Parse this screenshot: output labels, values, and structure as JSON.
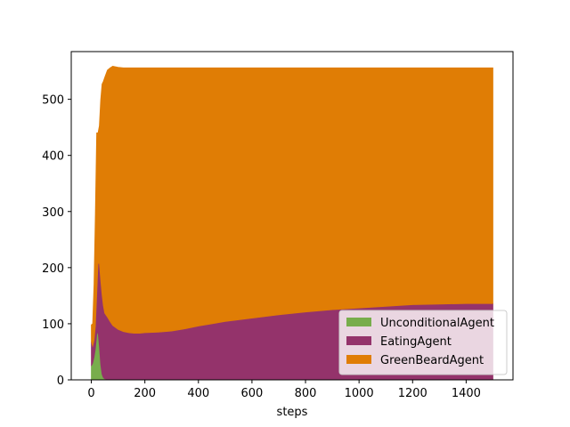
{
  "chart_data": {
    "type": "area",
    "stacked": true,
    "title": "",
    "xlabel": "steps",
    "ylabel": "",
    "xlim": [
      -75,
      1575
    ],
    "ylim": [
      0,
      585
    ],
    "xticks": [
      0,
      200,
      400,
      600,
      800,
      1000,
      1200,
      1400
    ],
    "yticks": [
      0,
      100,
      200,
      300,
      400,
      500
    ],
    "grid": false,
    "legend_position": "bottom-right",
    "x": [
      0,
      5,
      10,
      15,
      20,
      25,
      30,
      35,
      40,
      45,
      50,
      60,
      70,
      80,
      100,
      120,
      140,
      160,
      180,
      200,
      250,
      300,
      350,
      400,
      450,
      500,
      600,
      700,
      800,
      900,
      1000,
      1100,
      1200,
      1300,
      1400,
      1500
    ],
    "series": [
      {
        "name": "UnconditionalAgent",
        "color": "#78ad4c",
        "values": [
          25,
          30,
          40,
          55,
          80,
          87,
          60,
          28,
          10,
          4,
          2,
          1,
          1,
          1,
          1,
          1,
          1,
          1,
          1,
          1,
          1,
          1,
          1,
          1,
          1,
          1,
          1,
          1,
          1,
          1,
          1,
          1,
          1,
          1,
          1,
          1
        ]
      },
      {
        "name": "EatingAgent",
        "color": "#94336b",
        "values": [
          43,
          30,
          30,
          40,
          70,
          120,
          148,
          150,
          142,
          128,
          117,
          111,
          103,
          96,
          89,
          85,
          83,
          82,
          82,
          83,
          84,
          86,
          90,
          95,
          99,
          103,
          109,
          115,
          120,
          124,
          127,
          130,
          133,
          134,
          135,
          135
        ]
      },
      {
        "name": "GreenBeardAgent",
        "color": "#e07d05",
        "values": [
          30,
          40,
          100,
          200,
          290,
          233,
          245,
          321,
          375,
          400,
          420,
          440,
          452,
          462,
          467,
          470,
          472,
          473,
          473,
          472,
          471,
          469,
          465,
          460,
          456,
          452,
          446,
          440,
          435,
          431,
          428,
          425,
          422,
          421,
          420,
          420
        ]
      }
    ]
  }
}
